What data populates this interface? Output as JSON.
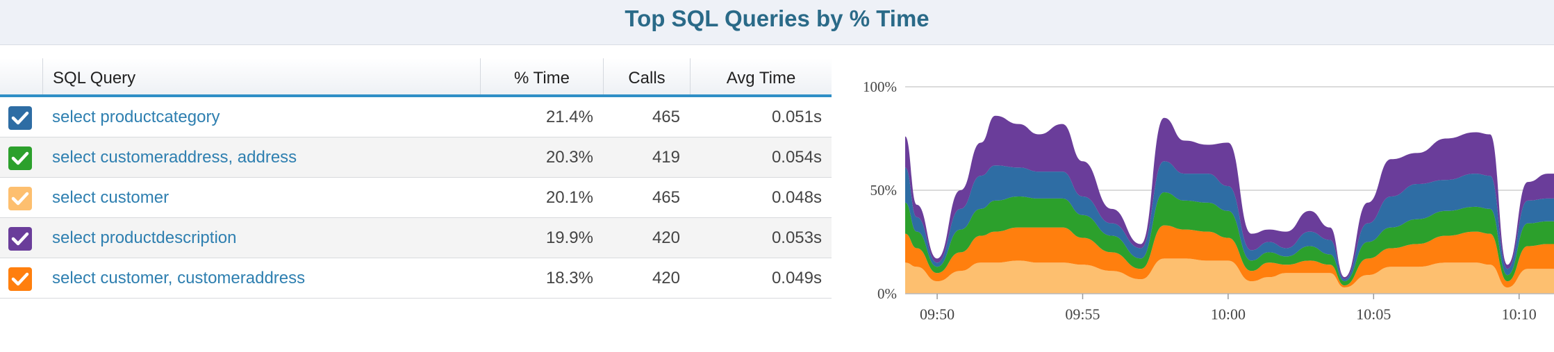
{
  "title": "Top SQL Queries by % Time",
  "table": {
    "headers": {
      "query": "SQL Query",
      "pct": "% Time",
      "calls": "Calls",
      "avg": "Avg Time"
    },
    "rows": [
      {
        "query": "select productcategory",
        "pct": "21.4%",
        "calls": "465",
        "avg": "0.051s",
        "color": "#2e6da4",
        "checked": true
      },
      {
        "query": "select customeraddress, address",
        "pct": "20.3%",
        "calls": "419",
        "avg": "0.054s",
        "color": "#2ca02c",
        "checked": true
      },
      {
        "query": "select customer",
        "pct": "20.1%",
        "calls": "465",
        "avg": "0.048s",
        "color": "#fdbf6f",
        "checked": true
      },
      {
        "query": "select productdescription",
        "pct": "19.9%",
        "calls": "420",
        "avg": "0.053s",
        "color": "#6a3d9a",
        "checked": true
      },
      {
        "query": "select customer, customeraddress",
        "pct": "18.3%",
        "calls": "420",
        "avg": "0.049s",
        "color": "#ff7f0e",
        "checked": true
      }
    ]
  },
  "chart_data": {
    "type": "area",
    "stacked": true,
    "ylim": [
      0,
      100
    ],
    "yticks": [
      "0%",
      "50%",
      "100%"
    ],
    "xticks": [
      "09:50",
      "09:55",
      "10:00",
      "10:05",
      "10:10"
    ],
    "grid": true,
    "x_minutes": [
      48.9,
      49.3,
      50.0,
      50.8,
      51.5,
      52.0,
      52.8,
      53.5,
      54.3,
      55.0,
      56.0,
      57.0,
      57.8,
      58.5,
      59.3,
      60.0,
      60.8,
      61.4,
      62.0,
      62.8,
      63.5,
      64.0,
      64.8,
      65.6,
      66.5,
      67.5,
      68.5,
      69.0,
      69.6,
      70.3,
      71.0,
      71.2
    ],
    "series": [
      {
        "color": "#fdbf6f",
        "values": [
          15,
          13,
          6,
          11,
          15,
          15,
          16,
          15,
          15,
          14,
          11,
          7,
          17,
          17,
          16,
          16,
          6,
          8,
          10,
          10,
          10,
          3,
          9,
          13,
          13,
          15,
          15,
          14,
          3,
          12,
          12,
          12
        ]
      },
      {
        "color": "#ff7f0e",
        "values": [
          14,
          9,
          4,
          9,
          13,
          15,
          16,
          17,
          17,
          13,
          9,
          5,
          16,
          14,
          14,
          11,
          5,
          7,
          4,
          6,
          4,
          1,
          8,
          9,
          11,
          13,
          15,
          15,
          3,
          11,
          12,
          12
        ]
      },
      {
        "color": "#2ca02c",
        "values": [
          15,
          8,
          3,
          11,
          13,
          15,
          15,
          14,
          14,
          11,
          8,
          5,
          16,
          14,
          14,
          13,
          5,
          5,
          4,
          7,
          5,
          2,
          8,
          10,
          12,
          12,
          12,
          12,
          3,
          11,
          11,
          11
        ]
      },
      {
        "color": "#2e6da4",
        "values": [
          17,
          7,
          2,
          10,
          16,
          17,
          14,
          13,
          13,
          9,
          6,
          5,
          15,
          13,
          14,
          12,
          5,
          5,
          4,
          7,
          7,
          1,
          9,
          15,
          17,
          15,
          16,
          16,
          3,
          11,
          11,
          11
        ]
      },
      {
        "color": "#6a3d9a",
        "values": [
          15,
          6,
          2,
          9,
          16,
          24,
          21,
          18,
          23,
          17,
          7,
          2,
          21,
          16,
          14,
          21,
          8,
          6,
          8,
          10,
          6,
          1,
          10,
          18,
          15,
          20,
          20,
          20,
          2,
          9,
          12,
          12
        ]
      }
    ]
  }
}
